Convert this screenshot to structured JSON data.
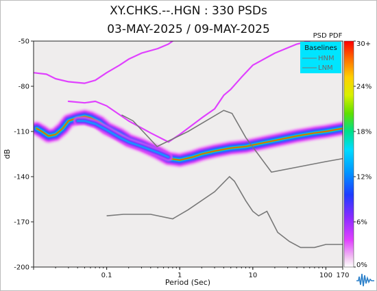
{
  "title": "XY.CHKS.--.HGN : 330 PSDs",
  "subtitle": "03-MAY-2025 / 09-MAY-2025",
  "colorbar_title": "PSD PDF",
  "legend": {
    "title": "Baselines",
    "items": [
      "HNM",
      "LNM"
    ],
    "line_color": "#777777",
    "bg": "#00e5ff"
  },
  "chart_data": {
    "type": "heatmap",
    "title": "XY.CHKS.--.HGN : 330 PSDs",
    "subtitle": "03-MAY-2025 / 09-MAY-2025",
    "xlabel": "Period (Sec)",
    "ylabel": "dB",
    "xscale": "log",
    "xlim": [
      0.01,
      170
    ],
    "ylim": [
      -200,
      -50
    ],
    "xticks": [
      {
        "v": 0.1,
        "label": "0.1"
      },
      {
        "v": 1,
        "label": "1"
      },
      {
        "v": 10,
        "label": "10"
      },
      {
        "v": 100,
        "label": "100"
      },
      {
        "v": 170,
        "label": "170"
      }
    ],
    "yticks": [
      -50,
      -80,
      -110,
      -140,
      -170,
      -200
    ],
    "colorbar": {
      "label": "PSD PDF",
      "ticks": [
        "30+",
        "24%",
        "18%",
        "12%",
        "6%",
        "0%"
      ]
    },
    "legend_position": "top-right",
    "series": [
      {
        "name": "HNM",
        "points": [
          [
            0.16,
            -99
          ],
          [
            0.23,
            -103
          ],
          [
            0.49,
            -120
          ],
          [
            1.3,
            -110
          ],
          [
            4,
            -96
          ],
          [
            5.2,
            -98
          ],
          [
            8,
            -114
          ],
          [
            18,
            -137
          ],
          [
            100,
            -130
          ],
          [
            170,
            -128
          ]
        ]
      },
      {
        "name": "LNM",
        "points": [
          [
            0.1,
            -166
          ],
          [
            0.17,
            -165
          ],
          [
            0.4,
            -165
          ],
          [
            0.8,
            -168
          ],
          [
            1.3,
            -162
          ],
          [
            3,
            -150
          ],
          [
            4.8,
            -140
          ],
          [
            5.6,
            -143
          ],
          [
            8,
            -156
          ],
          [
            10,
            -163
          ],
          [
            12,
            -166
          ],
          [
            15.6,
            -163
          ],
          [
            21.9,
            -177
          ],
          [
            31.6,
            -183
          ],
          [
            45,
            -187
          ],
          [
            70,
            -187
          ],
          [
            100,
            -185
          ],
          [
            170,
            -185
          ]
        ]
      }
    ],
    "density": [
      {
        "label": "main band",
        "points": [
          [
            0.011,
            -108
          ],
          [
            0.013,
            -110
          ],
          [
            0.016,
            -113
          ],
          [
            0.02,
            -112
          ],
          [
            0.025,
            -108
          ],
          [
            0.03,
            -103
          ],
          [
            0.04,
            -101
          ],
          [
            0.05,
            -100
          ],
          [
            0.06,
            -101
          ],
          [
            0.08,
            -104
          ],
          [
            0.1,
            -108
          ],
          [
            0.15,
            -112
          ],
          [
            0.2,
            -116
          ],
          [
            0.3,
            -119
          ],
          [
            0.5,
            -124
          ],
          [
            0.7,
            -128
          ],
          [
            0.85,
            -128.5
          ],
          [
            1,
            -129
          ],
          [
            1.5,
            -127
          ],
          [
            2,
            -125
          ],
          [
            3,
            -123
          ],
          [
            5,
            -121
          ],
          [
            8,
            -120
          ],
          [
            10,
            -119
          ],
          [
            20,
            -116
          ],
          [
            40,
            -113
          ],
          [
            70,
            -111
          ],
          [
            100,
            -110
          ],
          [
            170,
            -108
          ]
        ]
      },
      {
        "label": "secondary band",
        "points": [
          [
            0.04,
            -103
          ],
          [
            0.05,
            -103
          ],
          [
            0.07,
            -105
          ],
          [
            0.1,
            -109
          ],
          [
            0.15,
            -114
          ],
          [
            0.2,
            -117
          ],
          [
            0.3,
            -120
          ],
          [
            0.5,
            -124
          ],
          [
            0.7,
            -127
          ]
        ]
      },
      {
        "label": "upper outlier",
        "points": [
          [
            0.01,
            -71
          ],
          [
            0.015,
            -72
          ],
          [
            0.02,
            -75
          ],
          [
            0.03,
            -77
          ],
          [
            0.05,
            -78
          ],
          [
            0.07,
            -76
          ],
          [
            0.1,
            -71
          ],
          [
            0.15,
            -66
          ],
          [
            0.2,
            -62
          ],
          [
            0.3,
            -58
          ],
          [
            0.5,
            -55
          ],
          [
            0.7,
            -52
          ],
          [
            0.8,
            -50
          ]
        ]
      },
      {
        "label": "middle outlier",
        "points": [
          [
            0.03,
            -90
          ],
          [
            0.05,
            -91
          ],
          [
            0.07,
            -90
          ],
          [
            0.1,
            -93
          ],
          [
            0.2,
            -103
          ],
          [
            0.4,
            -111
          ],
          [
            0.7,
            -117
          ],
          [
            1,
            -112
          ],
          [
            2,
            -101
          ],
          [
            3,
            -95
          ],
          [
            4,
            -86
          ],
          [
            5,
            -82
          ],
          [
            7,
            -74
          ],
          [
            10,
            -66
          ],
          [
            20,
            -58
          ],
          [
            40,
            -52
          ],
          [
            60,
            -50
          ]
        ]
      }
    ]
  }
}
